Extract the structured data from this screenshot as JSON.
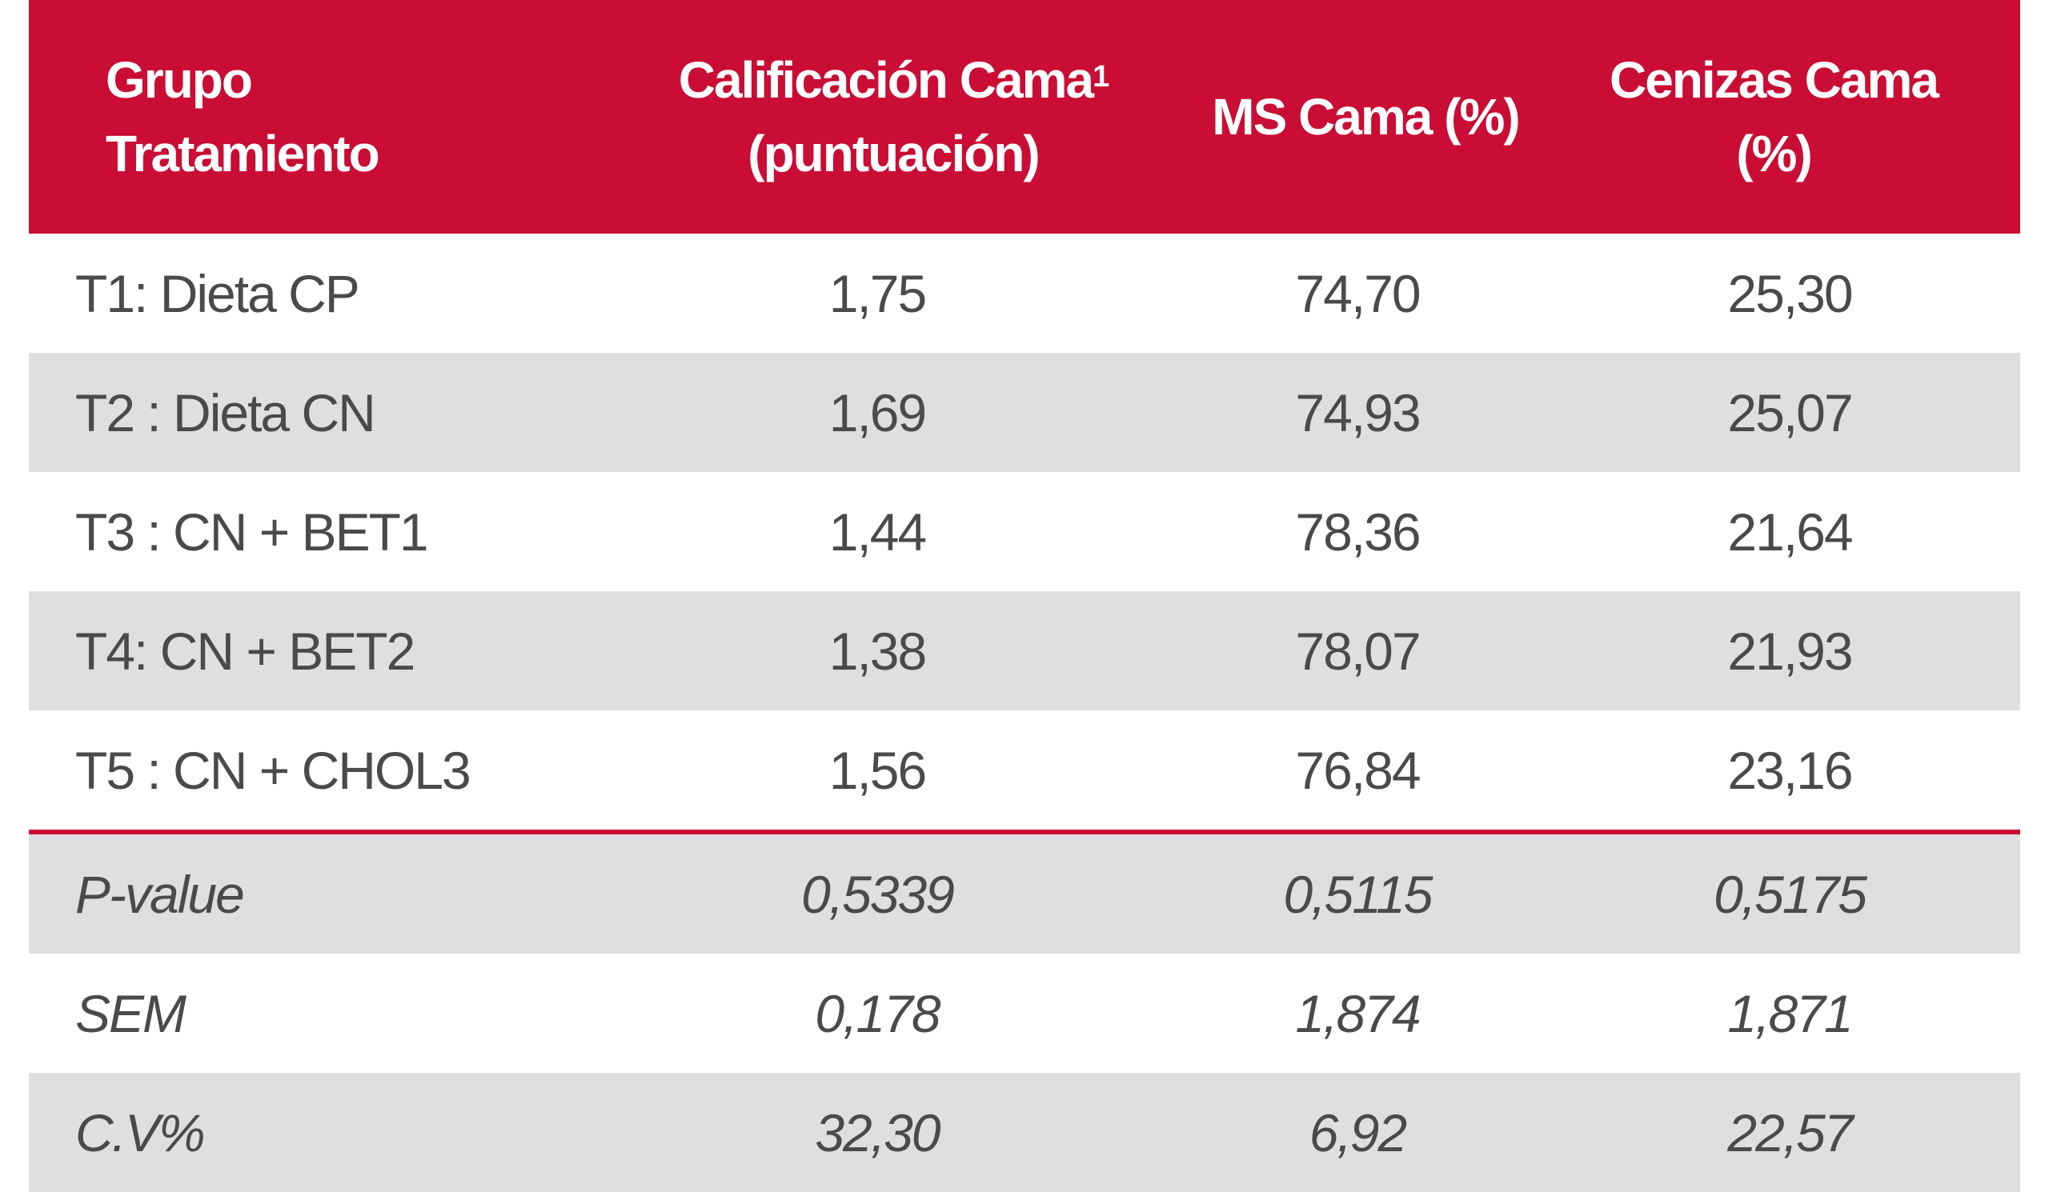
{
  "colors": {
    "header_bg": "#c90d35",
    "header_text": "#ffffff",
    "row_shaded": "#dfdfdf",
    "row_white": "#ffffff",
    "body_text": "#4a4a4a",
    "divider": "#c90d35"
  },
  "header": {
    "col1_line1": "Grupo",
    "col1_line2": "Tratamiento",
    "col2_line1": "Calificación Cama",
    "col2_sup": "1",
    "col2_line2": "(puntuación)",
    "col3": "MS Cama (%)",
    "col4_line1": "Cenizas Cama",
    "col4_line2": "(%)"
  },
  "rows": [
    {
      "group": "T1:  Dieta  CP",
      "calificacion": "1,75",
      "ms": "74,70",
      "cenizas": "25,30"
    },
    {
      "group": "T2 : Dieta  CN",
      "calificacion": "1,69",
      "ms": "74,93",
      "cenizas": "25,07"
    },
    {
      "group": "T3 : CN + BET1",
      "calificacion": "1,44",
      "ms": "78,36",
      "cenizas": "21,64"
    },
    {
      "group": "T4: CN + BET2",
      "calificacion": "1,38",
      "ms": "78,07",
      "cenizas": "21,93"
    },
    {
      "group": "T5 : CN + CHOL3",
      "calificacion": "1,56",
      "ms": "76,84",
      "cenizas": "23,16"
    }
  ],
  "stats": [
    {
      "label": "P-value",
      "calificacion": "0,5339",
      "ms": "0,5115",
      "cenizas": "0,5175"
    },
    {
      "label": "SEM",
      "calificacion": "0,178",
      "ms": "1,874",
      "cenizas": "1,871"
    },
    {
      "label": "C.V%",
      "calificacion": "32,30",
      "ms": "6,92",
      "cenizas": "22,57"
    }
  ]
}
